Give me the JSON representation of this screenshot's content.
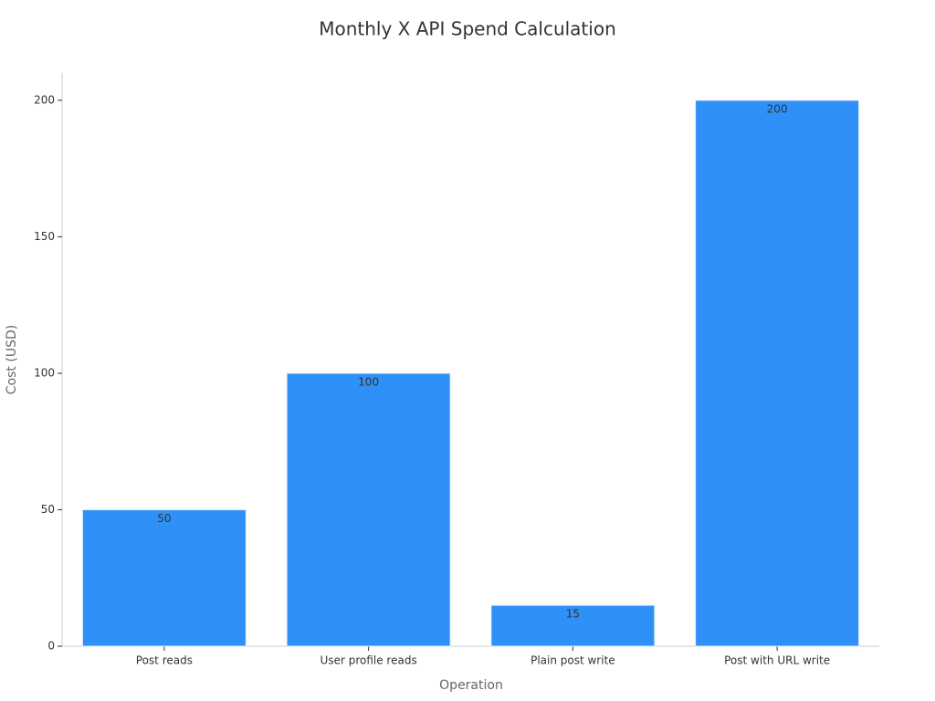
{
  "chart_data": {
    "type": "bar",
    "title": "Monthly X API Spend Calculation",
    "x_label": "Operation",
    "y_label": "Cost (USD)",
    "categories": [
      "Post reads",
      "User profile reads",
      "Plain post write",
      "Post with URL write"
    ],
    "values": [
      50,
      100,
      15,
      200
    ],
    "color": "#2f91f7",
    "ylim": [
      0,
      210
    ],
    "yticks": [
      0,
      50,
      100,
      150,
      200
    ],
    "grid": false
  }
}
